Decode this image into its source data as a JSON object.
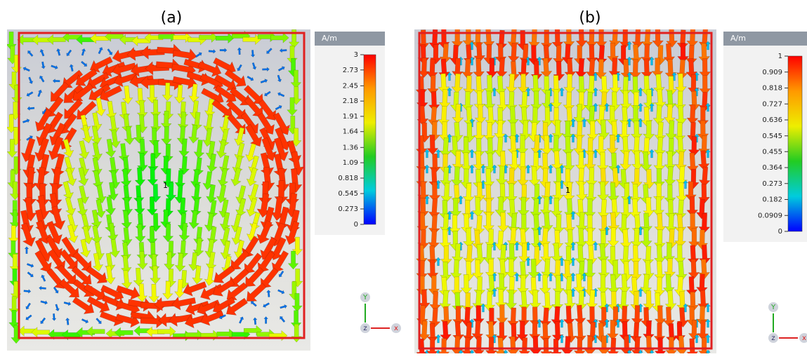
{
  "panels": [
    {
      "label": "(a)",
      "unit": "A/m",
      "ticks": [
        0,
        0.273,
        0.545,
        0.818,
        1.09,
        1.36,
        1.64,
        1.91,
        2.18,
        2.45,
        2.73,
        3
      ],
      "marker": "1",
      "axes": {
        "y": "Y",
        "z": "z",
        "x": "x"
      }
    },
    {
      "label": "(b)",
      "unit": "A/m",
      "ticks": [
        0,
        0.0909,
        0.182,
        0.273,
        0.364,
        0.455,
        0.545,
        0.636,
        0.727,
        0.818,
        0.909,
        1
      ],
      "marker": "1",
      "axes": {
        "y": "Y",
        "z": "z",
        "x": "x"
      }
    }
  ]
}
